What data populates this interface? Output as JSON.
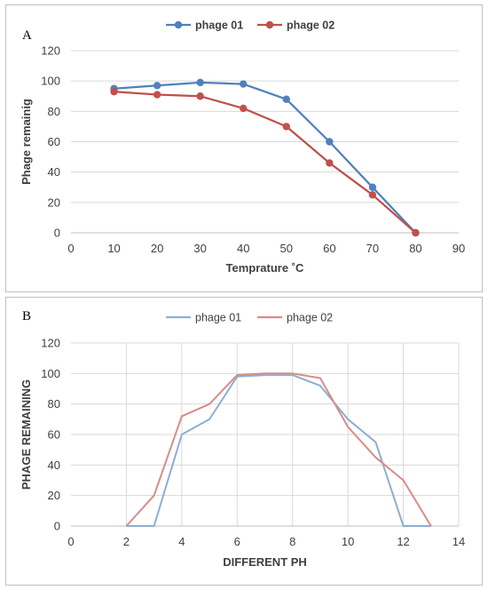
{
  "chart_data": [
    {
      "panel_label": "A",
      "type": "line",
      "markers": true,
      "x": [
        10,
        20,
        30,
        40,
        50,
        60,
        70,
        80
      ],
      "series": [
        {
          "name": "phage 01",
          "color": "#4f81bd",
          "values": [
            95,
            97,
            99,
            98,
            88,
            60,
            30,
            0
          ]
        },
        {
          "name": "phage 02",
          "color": "#c0504d",
          "values": [
            93,
            91,
            90,
            82,
            70,
            46,
            25,
            0
          ]
        }
      ],
      "xlabel": "Temprature ˚C",
      "ylabel": "Phage remainig",
      "xlim": [
        0,
        90
      ],
      "ylim": [
        0,
        120
      ],
      "xticks": [
        0,
        10,
        20,
        30,
        40,
        50,
        60,
        70,
        80,
        90
      ],
      "yticks": [
        0,
        20,
        40,
        60,
        80,
        100,
        120
      ],
      "grid": "horizontal",
      "legend": "top-center"
    },
    {
      "panel_label": "B",
      "type": "line",
      "markers": false,
      "series": [
        {
          "name": "phage 01",
          "color": "#8eaed2",
          "points": [
            [
              2,
              0
            ],
            [
              3,
              0
            ],
            [
              4,
              60
            ],
            [
              5,
              70
            ],
            [
              6,
              98
            ],
            [
              7,
              99
            ],
            [
              8,
              99
            ],
            [
              9,
              92
            ],
            [
              10,
              70
            ],
            [
              11,
              55
            ],
            [
              12,
              0
            ],
            [
              13,
              0
            ]
          ]
        },
        {
          "name": "phage 02",
          "color": "#d98b88",
          "points": [
            [
              2,
              0
            ],
            [
              3,
              20
            ],
            [
              4,
              72
            ],
            [
              5,
              80
            ],
            [
              6,
              99
            ],
            [
              7,
              100
            ],
            [
              8,
              100
            ],
            [
              9,
              97
            ],
            [
              10,
              65
            ],
            [
              11,
              45
            ],
            [
              12,
              30
            ],
            [
              13,
              0
            ]
          ]
        }
      ],
      "xlabel": "DIFFERENT PH",
      "ylabel": "PHAGE REMAINING",
      "xlim": [
        0,
        14
      ],
      "ylim": [
        0,
        120
      ],
      "xticks": [
        0,
        2,
        4,
        6,
        8,
        10,
        12,
        14
      ],
      "yticks": [
        0,
        20,
        40,
        60,
        80,
        100,
        120
      ],
      "grid": "both",
      "legend": "top-center"
    }
  ]
}
